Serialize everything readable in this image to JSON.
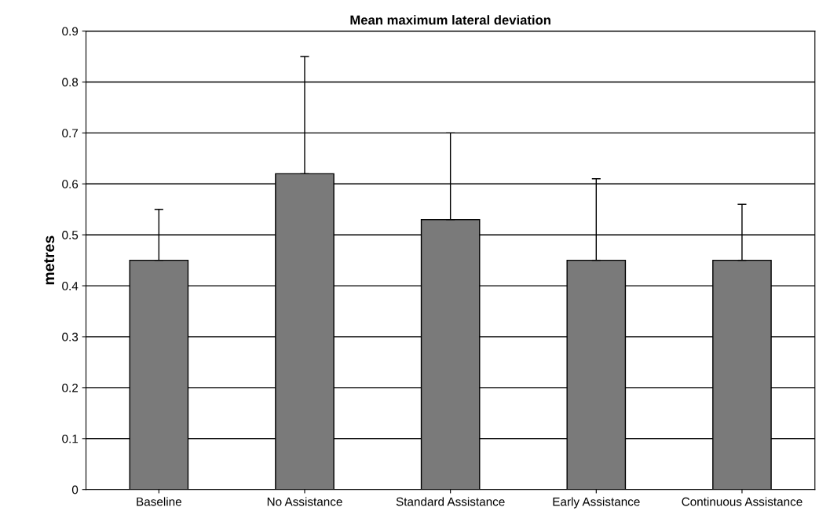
{
  "chart_data": {
    "type": "bar",
    "title": "Mean maximum lateral deviation",
    "ylabel": "metres",
    "categories": [
      "Baseline",
      "No Assistance",
      "Standard Assistance",
      "Early Assistance",
      "Continuous Assistance"
    ],
    "values": [
      0.45,
      0.62,
      0.53,
      0.45,
      0.45
    ],
    "errors": [
      [
        0.45,
        0.55
      ],
      [
        0.62,
        0.85
      ],
      [
        0.53,
        0.7
      ],
      [
        0.45,
        0.61
      ],
      [
        0.45,
        0.56
      ]
    ],
    "color": "#7a7a7a",
    "ylim": [
      0,
      0.9
    ],
    "yticks": [
      0,
      0.1,
      0.2,
      0.3,
      0.4,
      0.5,
      0.6,
      0.7,
      0.8,
      0.9
    ],
    "grid": "y",
    "legend": false
  }
}
